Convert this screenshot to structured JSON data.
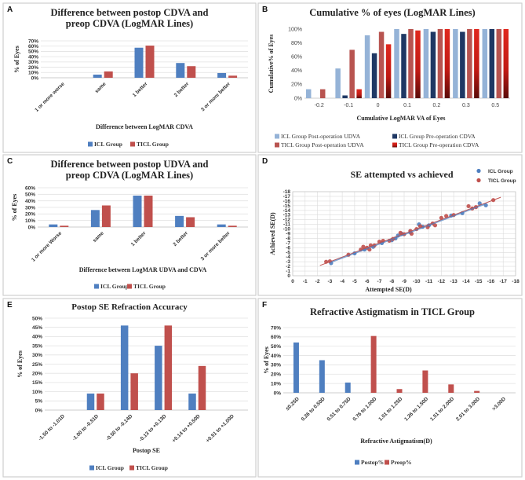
{
  "panel_letters": [
    "A",
    "B",
    "C",
    "D",
    "E",
    "F"
  ],
  "colors": {
    "icl": "#4f7fc0",
    "ticl": "#c0504d",
    "icl_post_udva": "#95b3d7",
    "icl_pre_cdva": "#1f3864",
    "ticl_post_udva": "#b85450",
    "ticl_pre_cdva": "#d42a20",
    "trend": "#c0504d"
  },
  "chart_data": [
    {
      "type": "bar",
      "title": [
        "Difference between  postop CDVA and",
        "preop CDVA (LogMAR Lines)"
      ],
      "xlabel": "Difference between LogMAR CDVA",
      "ylabel": "% of Eyes",
      "categories": [
        "1 or more worse",
        "same",
        "1 better",
        "2 better",
        "3 or more better"
      ],
      "ylim": [
        0,
        70
      ],
      "ystep": 10,
      "yticks": [
        "0%",
        "10%",
        "20%",
        "30%",
        "40%",
        "50%",
        "60%",
        "70%"
      ],
      "grid": true,
      "legend": "bottom",
      "series": [
        {
          "name": "ICL Group",
          "values": [
            0,
            6,
            57,
            28,
            9
          ]
        },
        {
          "name": "TICL Group",
          "values": [
            0,
            12,
            61,
            22,
            4
          ]
        }
      ]
    },
    {
      "type": "bar",
      "title": [
        "Cumulative % of eyes (LogMAR Lines)"
      ],
      "xlabel": "Cumulative LogMAR VA of Eyes",
      "ylabel": "Cumulative% of Eyes",
      "categories": [
        "-0.2",
        "-0.1",
        "0",
        "0.1",
        "0.2",
        "0.3",
        "0.5"
      ],
      "ylim": [
        0,
        100
      ],
      "ystep": 20,
      "yticks": [
        "0%",
        "20%",
        "40%",
        "60%",
        "80%",
        "100%"
      ],
      "grid": false,
      "legend": "bottom",
      "series": [
        {
          "name": "ICL Group Post-operation UDVA",
          "values": [
            13,
            43,
            91,
            100,
            100,
            100,
            100
          ]
        },
        {
          "name": "ICL Group Pre-operation CDVA",
          "values": [
            0,
            4,
            65,
            93,
            96,
            96,
            100
          ]
        },
        {
          "name": "TICL Group Post-operation UDVA",
          "values": [
            13,
            70,
            96,
            100,
            100,
            100,
            100
          ]
        },
        {
          "name": "TICL Group Pre-operation CDVA",
          "values": [
            0,
            13,
            78,
            98,
            100,
            100,
            100
          ]
        }
      ]
    },
    {
      "type": "bar",
      "title": [
        "Difference between  postop UDVA and",
        "preop CDVA (LogMAR Lines)"
      ],
      "xlabel": "Difference between LogMAR UDVA and CDVA",
      "ylabel": "% of Eyes",
      "categories": [
        "1 or more Worse",
        "same",
        "1 better",
        "2 better",
        "3 or more better"
      ],
      "ylim": [
        0,
        60
      ],
      "ystep": 10,
      "yticks": [
        "0%",
        "10%",
        "20%",
        "30%",
        "40%",
        "50%",
        "60%"
      ],
      "grid": true,
      "legend": "bottom",
      "series": [
        {
          "name": "ICL Group",
          "values": [
            4,
            26,
            48,
            17,
            4
          ]
        },
        {
          "name": "TICL Group",
          "values": [
            2,
            33,
            48,
            15,
            2
          ]
        }
      ]
    },
    {
      "type": "scatter",
      "title": [
        "SE attempted vs achieved"
      ],
      "xlabel": "Attempted SE(D)",
      "ylabel": "Achieved SE(D)",
      "xlim": [
        0,
        -18
      ],
      "ylim": [
        0,
        -18
      ],
      "xticks": [
        "0",
        "-1",
        "-2",
        "-3",
        "-4",
        "-5",
        "-6",
        "-7",
        "-8",
        "-9",
        "-10",
        "-11",
        "-12",
        "-13",
        "-14",
        "-15",
        "-16",
        "-17",
        "-18"
      ],
      "yticks": [
        "0",
        "-1",
        "-2",
        "-3",
        "-4",
        "-5",
        "-6",
        "-7",
        "-8",
        "-9",
        "-10",
        "-11",
        "-12",
        "-13",
        "-14",
        "-15",
        "-16",
        "-17",
        "-18"
      ],
      "grid": true,
      "legend": "top-right",
      "trendline": [
        [
          -2.2,
          -2.2
        ],
        [
          -16.8,
          -16.8
        ]
      ],
      "series": [
        {
          "name": "ICL Group",
          "points": [
            [
              -3.1,
              -2.7
            ],
            [
              -5,
              -4.8
            ],
            [
              -5.8,
              -5.6
            ],
            [
              -6.5,
              -6.2
            ],
            [
              -7.2,
              -7
            ],
            [
              -8,
              -7.6
            ],
            [
              -8.3,
              -8
            ],
            [
              -8.5,
              -8.6
            ],
            [
              -8.8,
              -9
            ],
            [
              -9.5,
              -9.3
            ],
            [
              -10.2,
              -11
            ],
            [
              -10.5,
              -10.5
            ],
            [
              -11,
              -10.8
            ],
            [
              -12.8,
              -12.9
            ],
            [
              -13.7,
              -13.4
            ],
            [
              -15.1,
              -15.5
            ],
            [
              -15.6,
              -15.1
            ]
          ]
        },
        {
          "name": "TICL Group",
          "points": [
            [
              -2.7,
              -3
            ],
            [
              -3,
              -3.1
            ],
            [
              -4.5,
              -4.5
            ],
            [
              -5.5,
              -5.6
            ],
            [
              -5.7,
              -6.2
            ],
            [
              -6,
              -6
            ],
            [
              -6.2,
              -5.6
            ],
            [
              -6.3,
              -6.5
            ],
            [
              -6.6,
              -6.5
            ],
            [
              -7,
              -7.3
            ],
            [
              -7.3,
              -7.5
            ],
            [
              -7.8,
              -7.5
            ],
            [
              -8.1,
              -7.9
            ],
            [
              -8.7,
              -9.2
            ],
            [
              -9,
              -8.9
            ],
            [
              -9.5,
              -9.6
            ],
            [
              -9.6,
              -9
            ],
            [
              -10,
              -10
            ],
            [
              -10.3,
              -10.6
            ],
            [
              -10.9,
              -10.4
            ],
            [
              -11.3,
              -11.2
            ],
            [
              -11.5,
              -10.8
            ],
            [
              -12,
              -12.4
            ],
            [
              -12.4,
              -12.8
            ],
            [
              -13,
              -13
            ],
            [
              -14.2,
              -14.9
            ],
            [
              -14.5,
              -14.4
            ],
            [
              -14.8,
              -14.7
            ],
            [
              -16.2,
              -16.2
            ]
          ]
        }
      ]
    },
    {
      "type": "bar",
      "title": [
        "Postop SE Refraction Accuracy"
      ],
      "xlabel": "Postop SE",
      "ylabel": "% of Eyes",
      "categories": [
        "-1.50 to -1.01D",
        "-1.00 to -0.51D",
        "-0.50 to -0.14D",
        "-0.13 to +0.13D",
        "+0.14 to +0.50D",
        "+0.51 to +1.00D"
      ],
      "ylim": [
        0,
        50
      ],
      "ystep": 5,
      "yticks": [
        "0%",
        "5%",
        "10%",
        "15%",
        "20%",
        "25%",
        "30%",
        "35%",
        "40%",
        "45%",
        "50%"
      ],
      "grid": true,
      "legend": "bottom",
      "series": [
        {
          "name": "ICL Group",
          "values": [
            0,
            9,
            46,
            35,
            9,
            0
          ]
        },
        {
          "name": "TICL Group",
          "values": [
            0,
            9,
            20,
            46,
            24,
            0
          ]
        }
      ]
    },
    {
      "type": "bar",
      "title": [
        "Refractive Astigmatism in TICL Group"
      ],
      "xlabel": "Refractive  Astigmatism(D)",
      "ylabel": "% of Eyes",
      "categories": [
        "≤0.25D",
        "0.26 to 0.50D",
        "0.51 to 0.75D",
        "0.76 to 1.00D",
        "1.01 to 1.25D",
        "1.26 to 1.50D",
        "1.51 to 2.00D",
        "2.01 to 3.00D",
        ">3.00D"
      ],
      "ylim": [
        0,
        70
      ],
      "ystep": 10,
      "yticks": [
        "0%",
        "10%",
        "20%",
        "30%",
        "40%",
        "50%",
        "60%",
        "70%"
      ],
      "grid": true,
      "legend": "bottom",
      "series": [
        {
          "name": "Postop%",
          "values": [
            54,
            35,
            11,
            0,
            0,
            0,
            0,
            0,
            0
          ]
        },
        {
          "name": "Preop%",
          "values": [
            0,
            0,
            0,
            61,
            4,
            24,
            9,
            2,
            0
          ]
        }
      ]
    }
  ]
}
